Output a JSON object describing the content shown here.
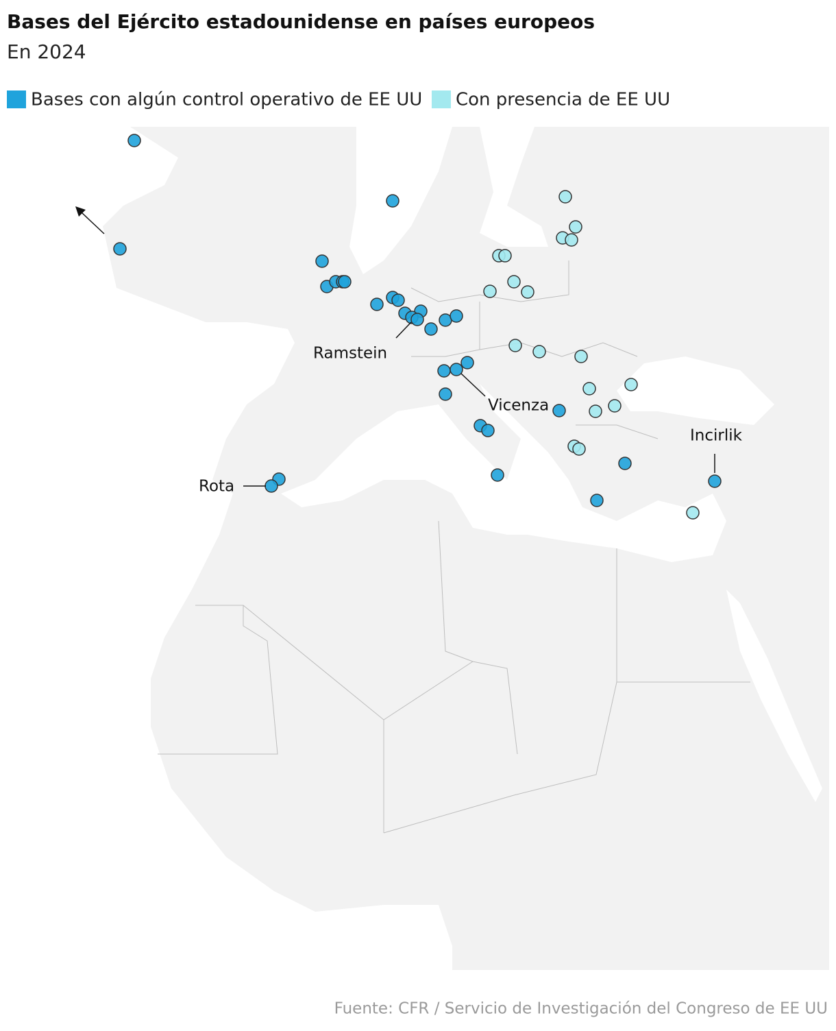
{
  "header": {
    "title": "Bases del Ejército estadounidense en países europeos",
    "subtitle": "En 2024"
  },
  "legend": [
    {
      "name": "Bases con algún control operativo de EE UU",
      "color": "#1fa3dc"
    },
    {
      "name": "Con presencia de EE UU",
      "color": "#a3e9ef"
    }
  ],
  "annotations": [
    "Ramstein",
    "Vicenza",
    "Rota",
    "Incirlik"
  ],
  "source": "Fuente: CFR / Servicio de Investigación del Congreso de EE UU"
}
